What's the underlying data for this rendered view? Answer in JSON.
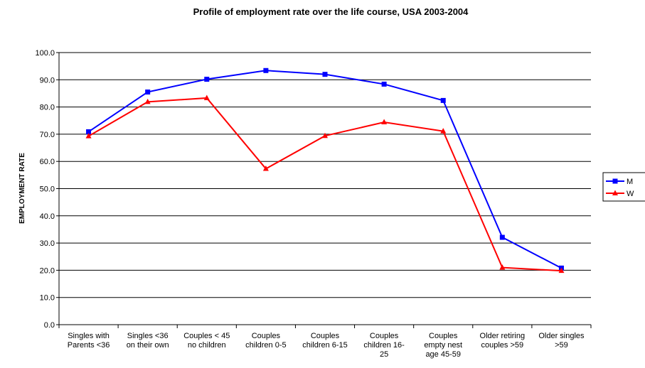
{
  "chart_data": {
    "type": "line",
    "title": "Profile of employment rate over the life course, USA 2003-2004",
    "xlabel": "",
    "ylabel": "EMPLOYMENT RATE",
    "ylim": [
      0,
      100
    ],
    "yticks": [
      "0.0",
      "10.0",
      "20.0",
      "30.0",
      "40.0",
      "50.0",
      "60.0",
      "70.0",
      "80.0",
      "90.0",
      "100.0"
    ],
    "grid": true,
    "legend": "right",
    "categories": [
      [
        "Singles with",
        "Parents <36"
      ],
      [
        "Singles  <36",
        "on their own"
      ],
      [
        "Couples < 45",
        "no children"
      ],
      [
        "Couples",
        "children 0-5"
      ],
      [
        "Couples",
        "children 6-15"
      ],
      [
        "Couples",
        "children 16-",
        "25"
      ],
      [
        "Couples",
        "empty nest",
        "age 45-59"
      ],
      [
        "Older retiring",
        "couples >59"
      ],
      [
        "Older singles",
        ">59"
      ]
    ],
    "series": [
      {
        "name": "M",
        "color": "#0000ff",
        "marker": "square",
        "values": [
          70.9,
          85.5,
          90.2,
          93.4,
          92.0,
          88.4,
          82.4,
          32.1,
          20.8
        ]
      },
      {
        "name": "W",
        "color": "#ff0000",
        "marker": "triangle",
        "values": [
          69.3,
          81.9,
          83.3,
          57.3,
          69.4,
          74.4,
          71.1,
          21.0,
          19.8
        ]
      }
    ]
  }
}
